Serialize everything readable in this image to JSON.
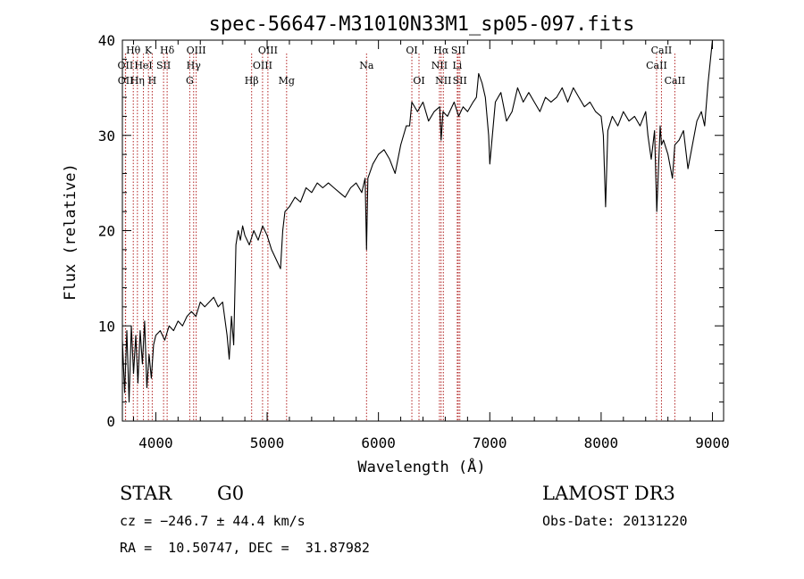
{
  "chart_data": {
    "type": "line",
    "title": "spec-56647-M31010N33M1_sp05-097.fits",
    "xlabel": "Wavelength (Å)",
    "ylabel": "Flux (relative)",
    "xlim": [
      3700,
      9100
    ],
    "ylim": [
      0,
      40
    ],
    "xticks": [
      4000,
      5000,
      6000,
      7000,
      8000,
      9000
    ],
    "yticks": [
      0,
      10,
      20,
      30,
      40
    ],
    "xtick_labels": [
      "4000",
      "5000",
      "6000",
      "7000",
      "8000",
      "9000"
    ],
    "ytick_labels": [
      "0",
      "10",
      "20",
      "30",
      "40"
    ],
    "grid": false,
    "colors": {
      "spectrum": "#000000",
      "lines": "#b22222",
      "axes": "#000000"
    },
    "lines": [
      {
        "label": "Hθ",
        "x": 3798,
        "row": 0
      },
      {
        "label": "K",
        "x": 3934,
        "row": 0
      },
      {
        "label": "Hδ",
        "x": 4102,
        "row": 0
      },
      {
        "label": "OIII",
        "x": 4363,
        "row": 0
      },
      {
        "label": "OIII",
        "x": 5007,
        "row": 0
      },
      {
        "label": "OI",
        "x": 6300,
        "row": 0
      },
      {
        "label": "Hα",
        "x": 6563,
        "row": 0
      },
      {
        "label": "SII",
        "x": 6717,
        "row": 0
      },
      {
        "label": "CaII",
        "x": 8542,
        "row": 0
      },
      {
        "label": "OII",
        "x": 3727,
        "row": 1
      },
      {
        "label": "HeI",
        "x": 3889,
        "row": 1
      },
      {
        "label": "SII",
        "x": 4070,
        "row": 1
      },
      {
        "label": "Hγ",
        "x": 4340,
        "row": 1
      },
      {
        "label": "OIII",
        "x": 4959,
        "row": 1
      },
      {
        "label": "Na",
        "x": 5893,
        "row": 1
      },
      {
        "label": "NII",
        "x": 6548,
        "row": 1
      },
      {
        "label": "Li",
        "x": 6708,
        "row": 1
      },
      {
        "label": "CaII",
        "x": 8498,
        "row": 1
      },
      {
        "label": "OII",
        "x": 3729,
        "row": 2
      },
      {
        "label": "Hη",
        "x": 3835,
        "row": 2
      },
      {
        "label": "H",
        "x": 3968,
        "row": 2
      },
      {
        "label": "G",
        "x": 4305,
        "row": 2
      },
      {
        "label": "Hβ",
        "x": 4861,
        "row": 2
      },
      {
        "label": "Mg",
        "x": 5175,
        "row": 2
      },
      {
        "label": "OI",
        "x": 6364,
        "row": 2
      },
      {
        "label": "NII",
        "x": 6583,
        "row": 2
      },
      {
        "label": "SII",
        "x": 6731,
        "row": 2
      },
      {
        "label": "CaII",
        "x": 8662,
        "row": 2
      }
    ],
    "series": [
      {
        "name": "flux",
        "x": [
          3700,
          3720,
          3740,
          3760,
          3780,
          3800,
          3820,
          3840,
          3860,
          3880,
          3900,
          3920,
          3940,
          3960,
          3980,
          4000,
          4040,
          4080,
          4120,
          4160,
          4200,
          4240,
          4280,
          4320,
          4360,
          4400,
          4440,
          4480,
          4520,
          4560,
          4600,
          4640,
          4660,
          4680,
          4700,
          4720,
          4740,
          4760,
          4780,
          4800,
          4840,
          4880,
          4920,
          4960,
          5000,
          5040,
          5080,
          5120,
          5140,
          5160,
          5200,
          5250,
          5300,
          5350,
          5400,
          5450,
          5500,
          5550,
          5600,
          5650,
          5700,
          5750,
          5800,
          5850,
          5880,
          5893,
          5905,
          5950,
          6000,
          6050,
          6100,
          6150,
          6200,
          6250,
          6280,
          6300,
          6350,
          6400,
          6450,
          6500,
          6550,
          6563,
          6580,
          6620,
          6680,
          6720,
          6760,
          6800,
          6850,
          6880,
          6900,
          6930,
          6960,
          6990,
          7000,
          7050,
          7100,
          7150,
          7200,
          7250,
          7300,
          7350,
          7400,
          7450,
          7500,
          7550,
          7600,
          7650,
          7700,
          7750,
          7800,
          7850,
          7900,
          7950,
          8000,
          8020,
          8040,
          8060,
          8100,
          8150,
          8200,
          8250,
          8300,
          8350,
          8400,
          8420,
          8450,
          8480,
          8500,
          8530,
          8542,
          8560,
          8600,
          8640,
          8662,
          8700,
          8740,
          8780,
          8820,
          8860,
          8900,
          8930,
          8960,
          9000
        ],
        "values": [
          8.5,
          3.0,
          9.5,
          2.0,
          10.0,
          5.0,
          9.0,
          4.0,
          9.5,
          6.0,
          10.5,
          3.5,
          7.0,
          4.5,
          8.0,
          9.0,
          9.5,
          8.5,
          10.0,
          9.5,
          10.5,
          10.0,
          11.0,
          11.5,
          11.0,
          12.5,
          12.0,
          12.5,
          13.0,
          12.0,
          12.5,
          9.0,
          6.5,
          11.0,
          8.0,
          18.5,
          20.0,
          19.0,
          20.5,
          19.5,
          18.5,
          20.0,
          19.0,
          20.5,
          19.5,
          18.0,
          17.0,
          16.0,
          20.0,
          22.0,
          22.5,
          23.5,
          23.0,
          24.5,
          24.0,
          25.0,
          24.5,
          25.0,
          24.5,
          24.0,
          23.5,
          24.5,
          25.0,
          24.0,
          25.5,
          18.0,
          25.5,
          27.0,
          28.0,
          28.5,
          27.5,
          26.0,
          29.0,
          31.0,
          31.0,
          33.5,
          32.5,
          33.5,
          31.5,
          32.5,
          33.0,
          29.5,
          32.5,
          32.0,
          33.5,
          32.0,
          33.0,
          32.5,
          33.5,
          34.0,
          36.5,
          35.5,
          34.0,
          30.0,
          27.0,
          33.5,
          34.5,
          31.5,
          32.5,
          35.0,
          33.5,
          34.5,
          33.5,
          32.5,
          34.0,
          33.5,
          34.0,
          35.0,
          33.5,
          35.0,
          34.0,
          33.0,
          33.5,
          32.5,
          32.0,
          30.0,
          22.5,
          30.5,
          32.0,
          31.0,
          32.5,
          31.5,
          32.0,
          31.0,
          32.5,
          30.0,
          27.5,
          30.5,
          22.0,
          31.0,
          29.0,
          29.5,
          28.0,
          25.5,
          29.0,
          29.5,
          30.5,
          26.5,
          29.0,
          31.5,
          32.5,
          31.0,
          35.5,
          40.0
        ]
      }
    ]
  },
  "info": {
    "object_class": "STAR",
    "subclass": "G0",
    "survey": "LAMOST DR3",
    "redshift": "cz = −246.7 ± 44.4 km/s",
    "obs_date": "Obs-Date: 20131220",
    "coords": "RA =  10.50747, DEC =  31.87982"
  }
}
